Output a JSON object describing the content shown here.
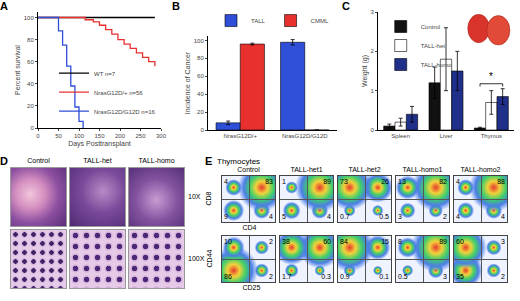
{
  "chart_data": [
    {
      "panel": "A",
      "type": "line",
      "x_label": "Days Posttransplant",
      "y_label": "Percent survival",
      "xlim": [
        0,
        300
      ],
      "xticks": [
        0,
        50,
        100,
        150,
        200,
        250,
        300
      ],
      "ylim": [
        0,
        105
      ],
      "yticks": [
        0,
        20,
        40,
        60,
        80,
        100
      ],
      "line_style": "step",
      "legend": "lower right",
      "series": [
        {
          "name": "WT",
          "n": "n=7",
          "color": "#000000",
          "x": [
            0,
            285
          ],
          "values": [
            100,
            100
          ]
        },
        {
          "name": "NrasG12D/+",
          "n": "n=56",
          "color": "#e8312f",
          "x": [
            0,
            95,
            115,
            135,
            150,
            165,
            180,
            195,
            210,
            225,
            240,
            255,
            270,
            285
          ],
          "values": [
            100,
            100,
            98,
            96,
            93,
            89,
            85,
            80,
            76,
            72,
            68,
            64,
            60,
            56
          ]
        },
        {
          "name": "NrasG12D/G12D",
          "n": "n=16",
          "color": "#2f4fd8",
          "x": [
            0,
            40,
            50,
            60,
            70,
            80,
            90,
            100,
            110
          ],
          "values": [
            100,
            100,
            88,
            75,
            56,
            38,
            19,
            6,
            0
          ]
        }
      ]
    },
    {
      "panel": "B",
      "type": "bar",
      "y_label": "Incidence of Cancer",
      "categories": [
        "NrasG12D/+",
        "NrasG12D/G12D"
      ],
      "ylim": [
        0,
        105
      ],
      "yticks": [
        0,
        20,
        40,
        60,
        80,
        100
      ],
      "legend": "top",
      "series": [
        {
          "name": "TALL",
          "color": "#2f4fd8",
          "values": [
            8,
            98
          ],
          "errors": [
            2,
            3
          ]
        },
        {
          "name": "CMML",
          "color": "#e8312f",
          "values": [
            96,
            0
          ],
          "errors": [
            1,
            0
          ]
        }
      ]
    },
    {
      "panel": "C",
      "type": "bar",
      "y_label": "Weight (g)",
      "categories": [
        "Spleen",
        "Liver",
        "Thymus"
      ],
      "ylim": [
        0,
        3
      ],
      "yticks": [
        0,
        1,
        2,
        3
      ],
      "legend": "upper left",
      "series": [
        {
          "name": "Control",
          "color": "#111111",
          "values": [
            0.1,
            1.2,
            0.05
          ],
          "errors": [
            0.05,
            0.4,
            0.02
          ]
        },
        {
          "name": "TALL-het",
          "color": "#ffffff",
          "values": [
            0.2,
            1.8,
            0.7
          ],
          "errors": [
            0.1,
            0.8,
            0.3
          ]
        },
        {
          "name": "TALL-homo",
          "color": "#1f2f8a",
          "values": [
            0.4,
            1.5,
            0.85
          ],
          "errors": [
            0.2,
            0.5,
            0.2
          ]
        }
      ],
      "annotations": [
        {
          "text": "*",
          "category": "Thymus"
        }
      ]
    }
  ],
  "panel_D": {
    "panel": "D",
    "columns": [
      "Control",
      "TALL-het",
      "TALL-homo"
    ],
    "rows": [
      "10X",
      "100X"
    ]
  },
  "panel_E": {
    "panel": "E",
    "title": "Thymocytes",
    "columns": [
      "Control",
      "TALL-het1",
      "TALL-het2",
      "TALL-homo1",
      "TALL-homo2"
    ],
    "rows": [
      {
        "x_label": "CD4",
        "y_label": "CD8",
        "quadrants": [
          [
            4,
            83,
            9,
            4
          ],
          [
            1,
            89,
            5,
            4
          ],
          [
            73,
            26,
            0.7,
            0.5
          ],
          [
            13,
            82,
            3,
            2
          ],
          [
            4,
            88,
            4,
            4
          ]
        ]
      },
      {
        "x_label": "CD25",
        "y_label": "CD44",
        "quadrants": [
          [
            10,
            2,
            86,
            2
          ],
          [
            38,
            60,
            1.7,
            0.3
          ],
          [
            84,
            15,
            0.9,
            0.1
          ],
          [
            8,
            89,
            0.5,
            3
          ],
          [
            60,
            3,
            35,
            2
          ]
        ]
      }
    ]
  }
}
